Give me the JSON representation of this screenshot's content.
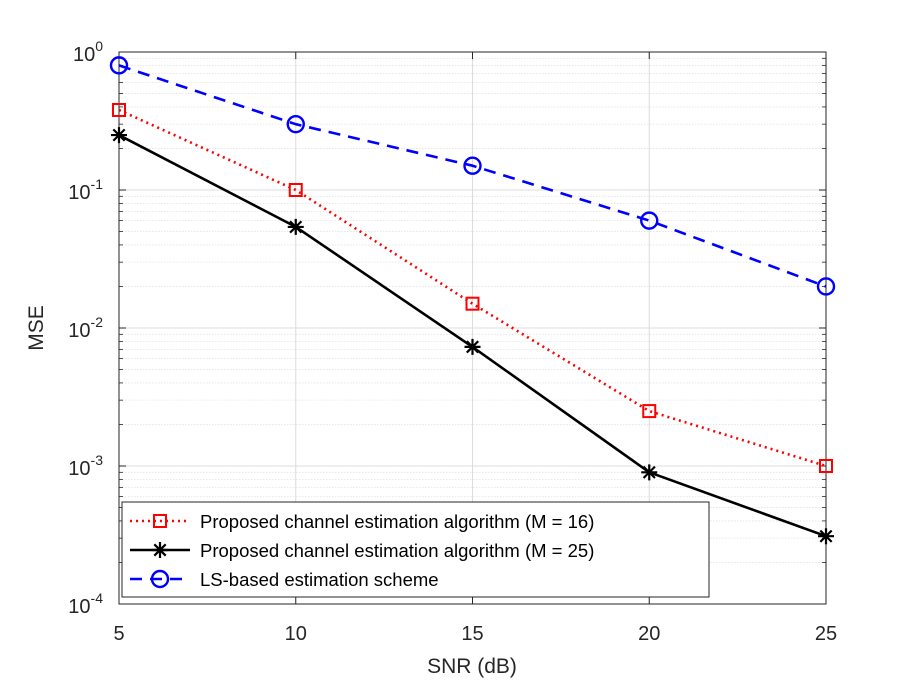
{
  "chart_data": {
    "type": "line",
    "yscale": "log",
    "xlabel": "SNR (dB)",
    "ylabel": "MSE",
    "xlim": [
      5,
      25
    ],
    "ylim_exponent": [
      -4,
      0
    ],
    "xticks": [
      5,
      10,
      15,
      20,
      25
    ],
    "xtick_labels": [
      "5",
      "10",
      "15",
      "20",
      "25"
    ],
    "yticks": [
      {
        "base": "10",
        "exp": "-4"
      },
      {
        "base": "10",
        "exp": "-3"
      },
      {
        "base": "10",
        "exp": "-2"
      },
      {
        "base": "10",
        "exp": "-1"
      },
      {
        "base": "10",
        "exp": "0"
      }
    ],
    "grid": true,
    "legend_position": "bottom-left",
    "series": [
      {
        "name": "Proposed channel estimation algorithm (M = 16)",
        "color": "#ff0000",
        "line_style": "dotted",
        "marker": "square",
        "x": [
          5,
          10,
          15,
          20,
          25
        ],
        "y": [
          0.38,
          0.1,
          0.015,
          0.0025,
          0.001
        ]
      },
      {
        "name": "Proposed channel estimation algorithm (M = 25)",
        "color": "#000000",
        "line_style": "solid",
        "marker": "asterisk",
        "x": [
          5,
          10,
          15,
          20,
          25
        ],
        "y": [
          0.25,
          0.054,
          0.0073,
          0.0009,
          0.00031
        ]
      },
      {
        "name": "LS-based estimation scheme",
        "color": "#0000ff",
        "line_style": "dashed",
        "marker": "circle",
        "x": [
          5,
          10,
          15,
          20,
          25
        ],
        "y": [
          0.8,
          0.3,
          0.15,
          0.06,
          0.02
        ]
      }
    ]
  }
}
